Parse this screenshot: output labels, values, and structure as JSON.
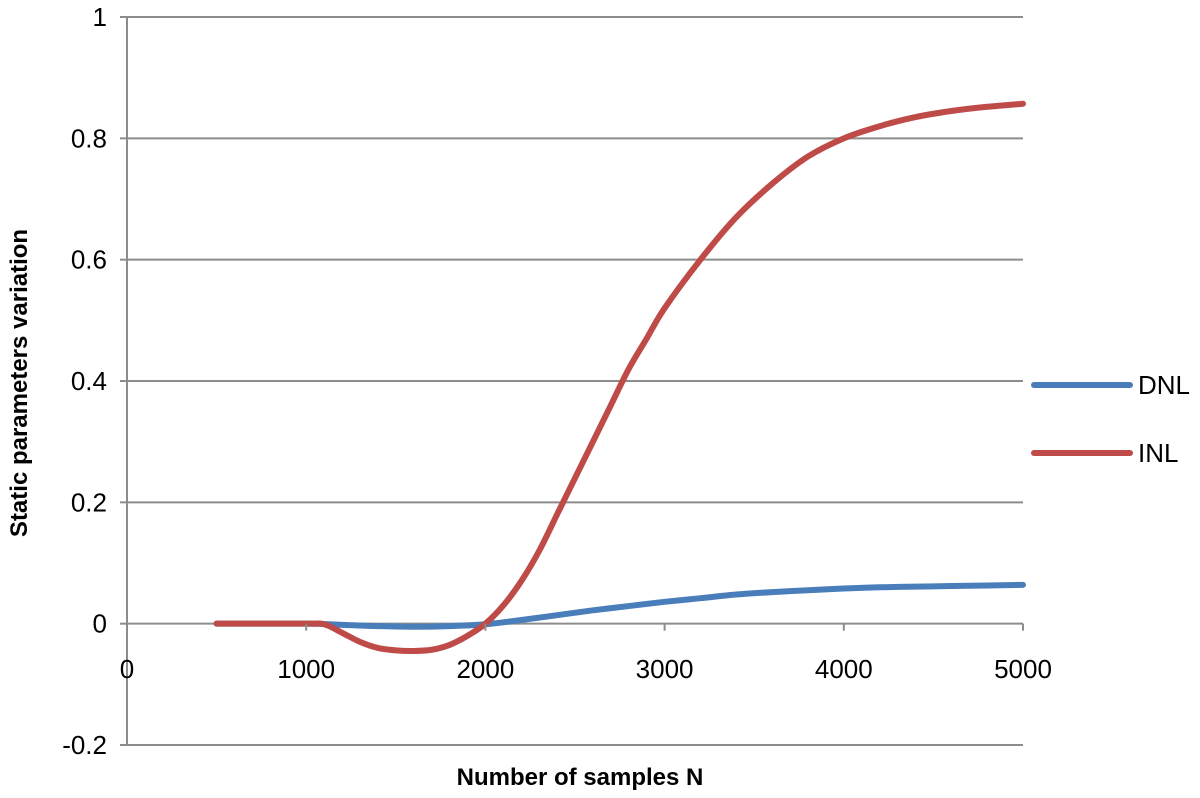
{
  "chart_data": {
    "type": "line",
    "xlabel": "Number of samples N",
    "ylabel": "Static parameters variation",
    "xlim": [
      0,
      5000
    ],
    "ylim": [
      -0.2,
      1
    ],
    "xticks": [
      0,
      1000,
      2000,
      3000,
      4000,
      5000
    ],
    "yticks": [
      -0.2,
      0,
      0.2,
      0.4,
      0.6,
      0.8,
      1
    ],
    "ytick_labels": [
      "-0.2",
      "0",
      "0.2",
      "0.4",
      "0.6",
      "0.8",
      "1"
    ],
    "xtick_labels": [
      "0",
      "1000",
      "2000",
      "3000",
      "4000",
      "5000"
    ],
    "grid": "horizontal",
    "legend_position": "right",
    "series": [
      {
        "name": "DNL",
        "color": "#4a7ebb",
        "x": [
          500,
          1000,
          1200,
          1400,
          1600,
          1800,
          2000,
          2200,
          2400,
          2600,
          2800,
          3000,
          3200,
          3400,
          3600,
          3800,
          4000,
          4200,
          4400,
          4600,
          4800,
          5000
        ],
        "y": [
          0,
          0,
          -0.002,
          -0.004,
          -0.005,
          -0.004,
          -0.001,
          0.006,
          0.014,
          0.022,
          0.029,
          0.036,
          0.042,
          0.048,
          0.052,
          0.055,
          0.058,
          0.06,
          0.061,
          0.062,
          0.063,
          0.064
        ]
      },
      {
        "name": "INL",
        "color": "#be4b48",
        "x": [
          500,
          1000,
          1100,
          1200,
          1300,
          1400,
          1500,
          1600,
          1700,
          1800,
          1900,
          2000,
          2100,
          2200,
          2300,
          2400,
          2500,
          2600,
          2700,
          2800,
          2900,
          3000,
          3200,
          3400,
          3600,
          3800,
          4000,
          4200,
          4400,
          4600,
          4800,
          5000
        ],
        "y": [
          0,
          0,
          -0.001,
          -0.015,
          -0.03,
          -0.04,
          -0.044,
          -0.045,
          -0.043,
          -0.035,
          -0.02,
          0.0,
          0.03,
          0.07,
          0.12,
          0.18,
          0.24,
          0.3,
          0.36,
          0.42,
          0.47,
          0.52,
          0.6,
          0.67,
          0.725,
          0.77,
          0.8,
          0.82,
          0.835,
          0.845,
          0.852,
          0.857
        ]
      }
    ]
  }
}
